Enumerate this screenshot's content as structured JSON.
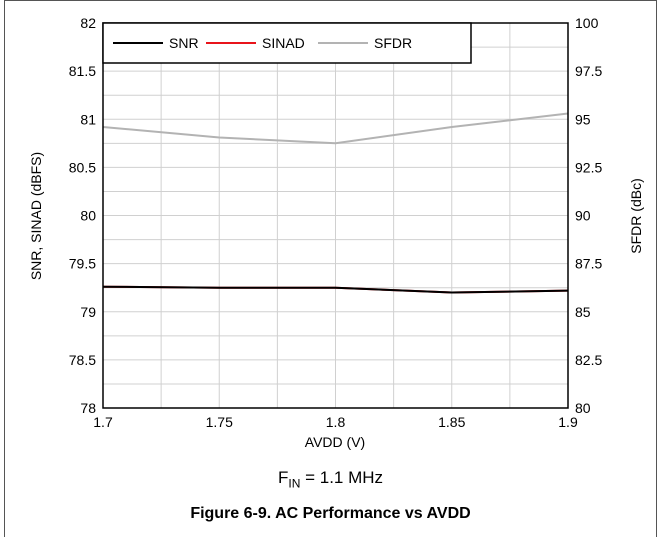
{
  "chart_data": {
    "type": "line",
    "x": [
      1.7,
      1.75,
      1.8,
      1.85,
      1.9
    ],
    "xlabel": "AVDD (V)",
    "xlim": [
      1.7,
      1.9
    ],
    "xticks": [
      "1.7",
      "1.75",
      "1.8",
      "1.85",
      "1.9"
    ],
    "ylabel": "SNR, SINAD (dBFS)",
    "ylim": [
      78,
      82
    ],
    "yticks": [
      "78",
      "78.5",
      "79",
      "79.5",
      "80",
      "80.5",
      "81",
      "81.5",
      "82"
    ],
    "y2label": "SFDR (dBc)",
    "y2lim": [
      80,
      100
    ],
    "y2ticks": [
      "80",
      "82.5",
      "85",
      "87.5",
      "90",
      "92.5",
      "95",
      "97.5",
      "100"
    ],
    "grid": true,
    "legend_position": "top-left",
    "series": [
      {
        "name": "SNR",
        "axis": "left",
        "color": "#000000",
        "values": [
          79.26,
          79.25,
          79.25,
          79.2,
          79.22
        ]
      },
      {
        "name": "SINAD",
        "axis": "left",
        "color": "#e8141b",
        "values": [
          79.26,
          79.25,
          79.25,
          79.2,
          79.22
        ]
      },
      {
        "name": "SFDR",
        "axis": "right",
        "color": "#b3b3b3",
        "values": [
          94.6,
          94.05,
          93.75,
          94.6,
          95.3
        ]
      }
    ]
  },
  "annotation": {
    "prefix": "F",
    "subscript": "IN",
    "suffix": " = 1.1 MHz"
  },
  "caption": "Figure 6-9. AC Performance vs AVDD"
}
